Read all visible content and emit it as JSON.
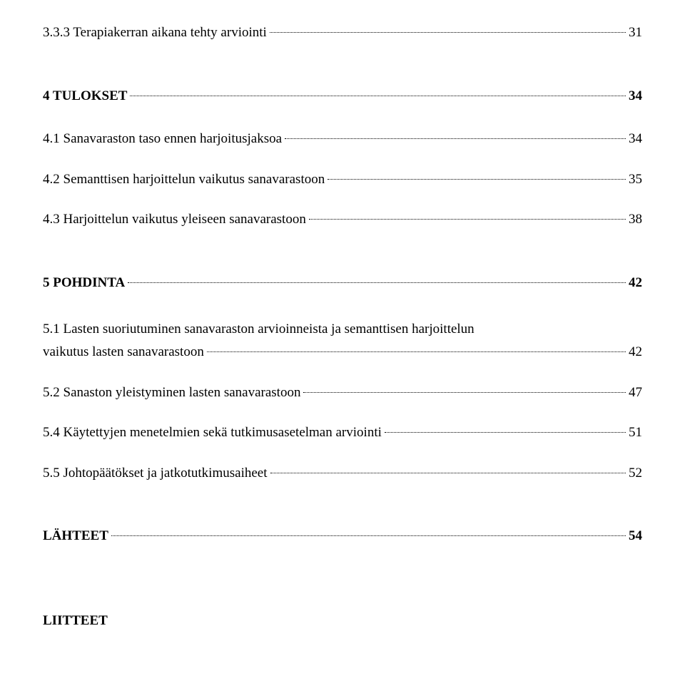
{
  "entries": [
    {
      "type": "line",
      "text": "3.3.3 Terapiakerran aikana tehty arviointi",
      "page": "31",
      "bold": false
    },
    {
      "type": "gap",
      "size": "med"
    },
    {
      "type": "line",
      "text": "4 TULOKSET",
      "page": "34",
      "bold": true
    },
    {
      "type": "gap",
      "size": "small"
    },
    {
      "type": "line",
      "text": "4.1 Sanavaraston taso ennen harjoitusjaksoa",
      "page": "34",
      "bold": false
    },
    {
      "type": "line",
      "text": "4.2 Semanttisen harjoittelun vaikutus sanavarastoon",
      "page": "35",
      "bold": false
    },
    {
      "type": "line",
      "text": "4.3 Harjoittelun vaikutus yleiseen sanavarastoon",
      "page": "38",
      "bold": false
    },
    {
      "type": "gap",
      "size": "med"
    },
    {
      "type": "line",
      "text": "5 POHDINTA",
      "page": "42",
      "bold": true
    },
    {
      "type": "gap",
      "size": "small"
    },
    {
      "type": "multiline",
      "first": "5.1 Lasten suoriutuminen sanavaraston arvioinneista ja semanttisen harjoittelun",
      "lastText": "vaikutus lasten sanavarastoon",
      "page": "42",
      "bold": false
    },
    {
      "type": "line",
      "text": "5.2 Sanaston yleistyminen lasten sanavarastoon",
      "page": "47",
      "bold": false
    },
    {
      "type": "line",
      "text": "5.4 Käytettyjen menetelmien sekä tutkimusasetelman arviointi",
      "page": "51",
      "bold": false
    },
    {
      "type": "line",
      "text": "5.5 Johtopäätökset ja jatkotutkimusaiheet",
      "page": "52",
      "bold": false
    },
    {
      "type": "gap",
      "size": "med"
    },
    {
      "type": "line",
      "text": "LÄHTEET",
      "page": "54",
      "bold": true
    },
    {
      "type": "gap",
      "size": "large"
    },
    {
      "type": "plain",
      "text": "LIITTEET",
      "bold": true
    }
  ]
}
